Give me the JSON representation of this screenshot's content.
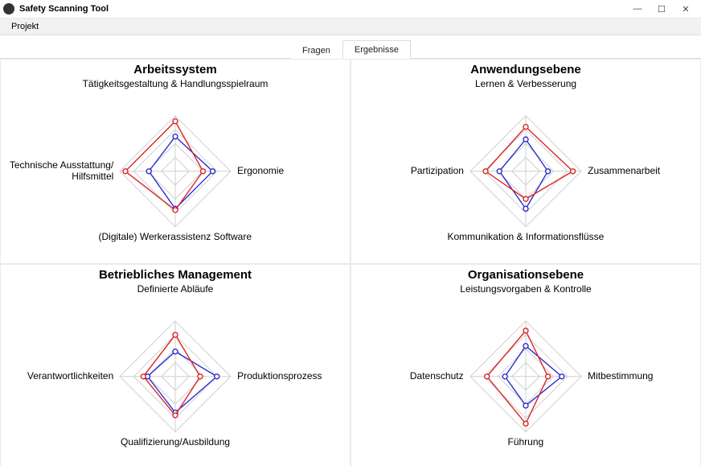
{
  "window": {
    "title": "Safety Scanning Tool",
    "menu_project": "Projekt"
  },
  "tabs": {
    "fragen": "Fragen",
    "ergebnisse": "Ergebnisse",
    "active": "ergebnisse"
  },
  "colors": {
    "series_red": "#d92525",
    "series_blue": "#2a2ecf",
    "grid": "#cfcfcf",
    "background": "#ffffff",
    "text": "#000000"
  },
  "radar_common": {
    "rings": 4,
    "max": 4,
    "marker_radius": 3,
    "line_width": 1.4
  },
  "panels": [
    {
      "title": "Arbeitssystem",
      "axes": [
        "Tätigkeitsgestaltung & Handlungsspielraum",
        "Ergonomie",
        "(Digitale) Werkerassistenz Software",
        "Technische Ausstattung/\nHilfsmittel"
      ],
      "red": [
        3.6,
        2.0,
        2.8,
        3.6
      ],
      "blue": [
        2.5,
        2.7,
        2.7,
        1.9
      ]
    },
    {
      "title": "Anwendungsebene",
      "axes": [
        "Lernen & Verbesserung",
        "Zusammenarbeit",
        "Kommunikation & Informationsflüsse",
        "Partizipation"
      ],
      "red": [
        3.2,
        3.4,
        2.0,
        2.9
      ],
      "blue": [
        2.3,
        1.6,
        2.7,
        1.9
      ]
    },
    {
      "title": "Betriebliches Management",
      "axes": [
        "Definierte Abläufe",
        "Produktionsprozess",
        "Qualifizierung/Ausbildung",
        "Verantwortlichkeiten"
      ],
      "red": [
        3.0,
        1.8,
        2.8,
        2.3
      ],
      "blue": [
        1.8,
        3.0,
        2.6,
        2.0
      ]
    },
    {
      "title": "Organisationsebene",
      "axes": [
        "Leistungsvorgaben & Kontrolle",
        "Mitbestimmung",
        "Führung",
        "Datenschutz"
      ],
      "red": [
        3.3,
        1.6,
        3.4,
        2.8
      ],
      "blue": [
        2.2,
        2.6,
        2.1,
        1.5
      ]
    }
  ]
}
